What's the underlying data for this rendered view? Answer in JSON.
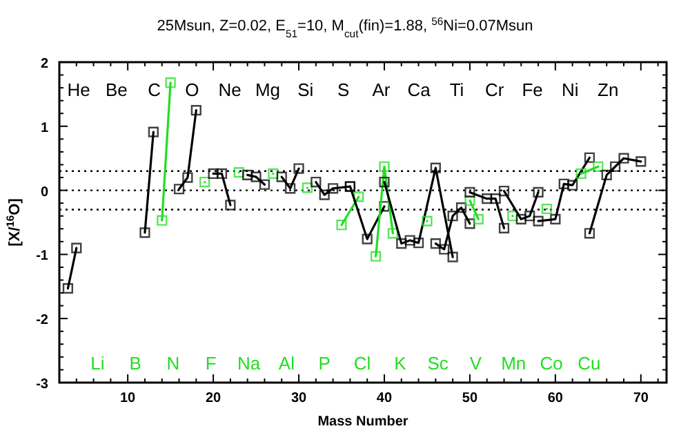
{
  "chart_data": {
    "type": "line",
    "title": "25Msun, Z=0.02, E$_{51}$=10, M$_{cut}$(fin)=1.88, $^{56}$Ni=0.07Msun",
    "xlabel": "Mass Number",
    "ylabel": "[X/$^{16}$O]",
    "xlim": [
      2,
      73
    ],
    "ylim": [
      -3,
      2
    ],
    "xticks": [
      {
        "value": 2,
        "label": null
      },
      {
        "value": 4,
        "label": null
      },
      {
        "value": 6,
        "label": null
      },
      {
        "value": 8,
        "label": null
      },
      10,
      {
        "value": 12,
        "label": null
      },
      {
        "value": 14,
        "label": null
      },
      {
        "value": 16,
        "label": null
      },
      {
        "value": 18,
        "label": null
      },
      20,
      {
        "value": 22,
        "label": null
      },
      {
        "value": 24,
        "label": null
      },
      {
        "value": 26,
        "label": null
      },
      {
        "value": 28,
        "label": null
      },
      30,
      {
        "value": 32,
        "label": null
      },
      {
        "value": 34,
        "label": null
      },
      {
        "value": 36,
        "label": null
      },
      {
        "value": 38,
        "label": null
      },
      40,
      {
        "value": 42,
        "label": null
      },
      {
        "value": 44,
        "label": null
      },
      {
        "value": 46,
        "label": null
      },
      {
        "value": 48,
        "label": null
      },
      50,
      {
        "value": 52,
        "label": null
      },
      {
        "value": 54,
        "label": null
      },
      {
        "value": 56,
        "label": null
      },
      {
        "value": 58,
        "label": null
      },
      60,
      {
        "value": 62,
        "label": null
      },
      {
        "value": 64,
        "label": null
      },
      {
        "value": 66,
        "label": null
      },
      {
        "value": 68,
        "label": null
      },
      70,
      {
        "value": 72,
        "label": null
      }
    ],
    "yticks": [
      -3,
      {
        "value": -2.8,
        "label": null
      },
      {
        "value": -2.6,
        "label": null
      },
      {
        "value": -2.4,
        "label": null
      },
      {
        "value": -2.2,
        "label": null
      },
      -2,
      {
        "value": -1.8,
        "label": null
      },
      {
        "value": -1.6,
        "label": null
      },
      {
        "value": -1.4,
        "label": null
      },
      {
        "value": -1.2,
        "label": null
      },
      -1,
      {
        "value": -0.8,
        "label": null
      },
      {
        "value": -0.6,
        "label": null
      },
      {
        "value": -0.4,
        "label": null
      },
      {
        "value": -0.2,
        "label": null
      },
      0,
      {
        "value": 0.2,
        "label": null
      },
      {
        "value": 0.4,
        "label": null
      },
      {
        "value": 0.6,
        "label": null
      },
      {
        "value": 0.8,
        "label": null
      },
      1,
      {
        "value": 1.2,
        "label": null
      },
      {
        "value": 1.4,
        "label": null
      },
      {
        "value": 1.6,
        "label": null
      },
      {
        "value": 1.8,
        "label": null
      },
      2
    ],
    "marker": "square",
    "line_style": "solid",
    "grid": false,
    "annotations": [
      "He",
      "Li",
      "Be",
      "B",
      "C",
      "N",
      "O",
      "F",
      "Ne",
      "Na",
      "Mg",
      "Al",
      "Si",
      "P",
      "S",
      "Cl",
      "Ar",
      "K",
      "Ca",
      "Sc",
      "Ti",
      "V",
      "Cr",
      "Mn",
      "Fe",
      "Co",
      "Ni",
      "Cu",
      "Zn"
    ],
    "ref_lines": [
      {
        "axis": "y",
        "value": 0.3,
        "line_style": "dotted",
        "color": "#000000"
      },
      {
        "axis": "y",
        "value": 0,
        "line_style": "dotted",
        "color": "#000000"
      },
      {
        "axis": "y",
        "value": -0.3,
        "line_style": "dotted",
        "color": "#000000"
      }
    ],
    "series": [
      {
        "color": "#000000",
        "x": [
          3,
          4
        ],
        "values": [
          -1.53,
          -0.9
        ]
      },
      {
        "color": "#000000",
        "x": [
          12,
          13
        ],
        "values": [
          -0.66,
          0.91
        ]
      },
      {
        "color": "#22dd22",
        "x": [
          14,
          15
        ],
        "values": [
          -0.47,
          1.68
        ]
      },
      {
        "color": "#000000",
        "x": [
          16,
          17,
          18
        ],
        "values": [
          0.02,
          0.2,
          1.25
        ]
      },
      {
        "color": "#22dd22",
        "x": [
          19
        ],
        "values": [
          0.13
        ]
      },
      {
        "color": "#000000",
        "x": [
          20,
          21,
          22
        ],
        "values": [
          0.26,
          0.26,
          -0.23
        ]
      },
      {
        "color": "#22dd22",
        "x": [
          23
        ],
        "values": [
          0.28
        ]
      },
      {
        "color": "#000000",
        "x": [
          24,
          25,
          26
        ],
        "values": [
          0.24,
          0.21,
          0.09
        ]
      },
      {
        "color": "#22dd22",
        "x": [
          27
        ],
        "values": [
          0.26
        ]
      },
      {
        "color": "#000000",
        "x": [
          28,
          29,
          30
        ],
        "values": [
          0.21,
          0.03,
          0.34
        ]
      },
      {
        "color": "#22dd22",
        "x": [
          31
        ],
        "values": [
          0.04
        ]
      },
      {
        "color": "#000000",
        "x": [
          32,
          33,
          34,
          36
        ],
        "values": [
          0.13,
          -0.07,
          0.03,
          0.06
        ]
      },
      {
        "color": "#22dd22",
        "x": [
          35,
          37
        ],
        "values": [
          -0.54,
          -0.1
        ]
      },
      {
        "color": "#000000",
        "x": [
          36,
          38,
          40
        ],
        "values": [
          0.06,
          -0.76,
          -0.25
        ]
      },
      {
        "color": "#22dd22",
        "x": [
          39,
          40,
          41
        ],
        "values": [
          -1.03,
          0.37,
          -0.67
        ]
      },
      {
        "color": "#000000",
        "x": [
          40,
          42,
          43,
          44,
          46,
          48
        ],
        "values": [
          0.13,
          -0.83,
          -0.78,
          -0.82,
          0.35,
          -1.04
        ]
      },
      {
        "color": "#22dd22",
        "x": [
          45
        ],
        "values": [
          -0.48
        ]
      },
      {
        "color": "#000000",
        "x": [
          46,
          47,
          48,
          49,
          50
        ],
        "values": [
          -0.83,
          -0.92,
          -0.4,
          -0.27,
          -0.52
        ]
      },
      {
        "color": "#22dd22",
        "x": [
          50,
          51
        ],
        "values": [
          -0.16,
          -0.45
        ]
      },
      {
        "color": "#000000",
        "x": [
          50,
          52,
          53,
          54
        ],
        "values": [
          -0.03,
          -0.13,
          -0.13,
          -0.59
        ]
      },
      {
        "color": "#22dd22",
        "x": [
          55
        ],
        "values": [
          -0.4
        ]
      },
      {
        "color": "#000000",
        "x": [
          54,
          56,
          57,
          58
        ],
        "values": [
          -0.01,
          -0.45,
          -0.4,
          -0.03
        ]
      },
      {
        "color": "#22dd22",
        "x": [
          59
        ],
        "values": [
          -0.29
        ]
      },
      {
        "color": "#000000",
        "x": [
          58,
          60,
          61,
          62,
          64
        ],
        "values": [
          -0.48,
          -0.45,
          0.1,
          0.08,
          0.51
        ]
      },
      {
        "color": "#22dd22",
        "x": [
          63,
          65
        ],
        "values": [
          0.26,
          0.37
        ]
      },
      {
        "color": "#000000",
        "x": [
          64,
          66,
          67,
          68,
          70
        ],
        "values": [
          -0.67,
          0.24,
          0.37,
          0.5,
          0.45
        ]
      }
    ]
  }
}
